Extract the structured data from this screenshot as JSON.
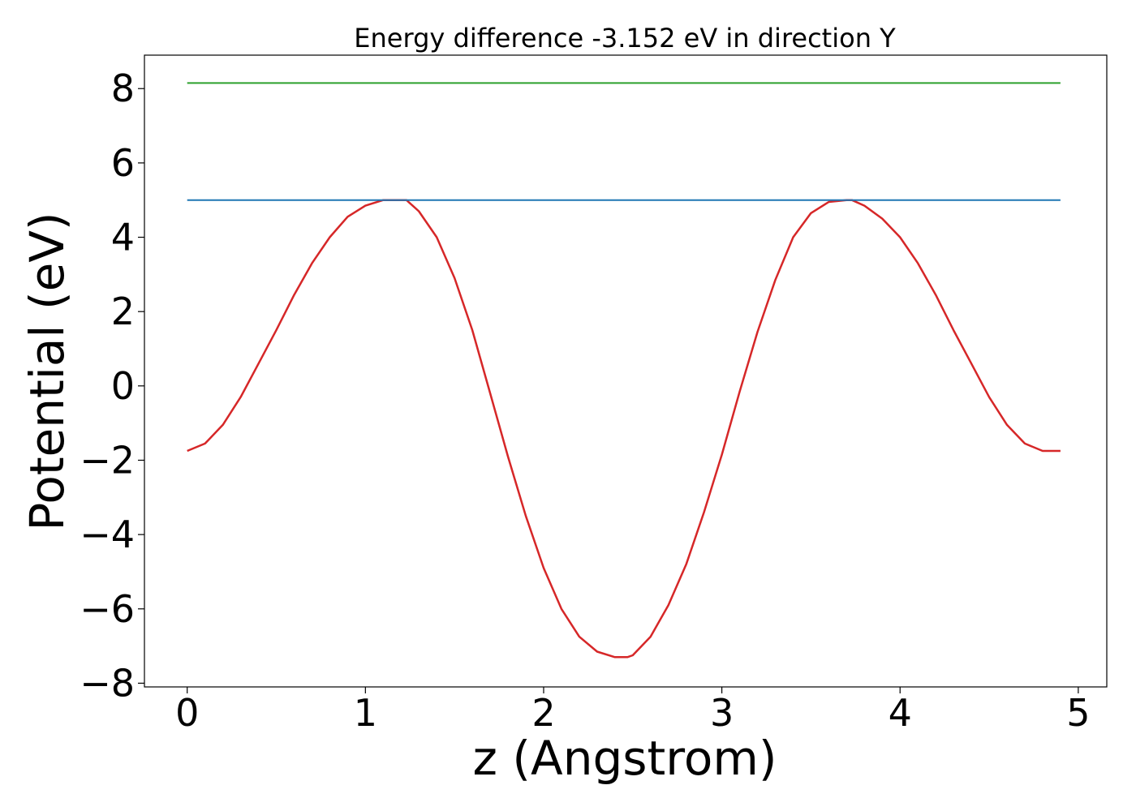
{
  "chart_data": {
    "type": "line",
    "title": "Energy difference -3.152 eV in direction Y",
    "xlabel": "z (Angstrom)",
    "ylabel": "Potential (eV)",
    "xlim": [
      -0.24,
      5.16
    ],
    "ylim": [
      -8.1,
      8.9
    ],
    "x_ticks": [
      0,
      1,
      2,
      3,
      4,
      5
    ],
    "y_ticks": [
      -8,
      -6,
      -4,
      -2,
      0,
      2,
      4,
      6,
      8
    ],
    "x_tick_labels": [
      "0",
      "1",
      "2",
      "3",
      "4",
      "5"
    ],
    "y_tick_labels": [
      "−8",
      "−6",
      "−4",
      "−2",
      "0",
      "2",
      "4",
      "6",
      "8"
    ],
    "grid": false,
    "series": [
      {
        "color": "#d62728",
        "x": [
          0,
          0.1,
          0.2,
          0.3,
          0.4,
          0.5,
          0.6,
          0.7,
          0.8,
          0.9,
          1.0,
          1.1,
          1.2,
          1.23,
          1.3,
          1.4,
          1.5,
          1.6,
          1.7,
          1.8,
          1.9,
          2.0,
          2.1,
          2.2,
          2.3,
          2.4,
          2.47,
          2.5,
          2.6,
          2.7,
          2.8,
          2.9,
          3.0,
          3.1,
          3.2,
          3.3,
          3.4,
          3.5,
          3.6,
          3.7,
          3.73,
          3.8,
          3.9,
          4.0,
          4.1,
          4.2,
          4.3,
          4.4,
          4.5,
          4.6,
          4.7,
          4.8,
          4.9
        ],
        "y": [
          -1.75,
          -1.55,
          -1.05,
          -0.3,
          0.6,
          1.5,
          2.45,
          3.3,
          4.0,
          4.55,
          4.85,
          5.0,
          5.0,
          5.0,
          4.7,
          4.0,
          2.9,
          1.5,
          -0.2,
          -1.9,
          -3.5,
          -4.9,
          -6.0,
          -6.75,
          -7.15,
          -7.3,
          -7.3,
          -7.25,
          -6.75,
          -5.9,
          -4.8,
          -3.4,
          -1.85,
          -0.15,
          1.45,
          2.85,
          4.0,
          4.65,
          4.95,
          5.0,
          5.0,
          4.85,
          4.5,
          4.0,
          3.3,
          2.45,
          1.5,
          0.6,
          -0.3,
          -1.05,
          -1.55,
          -1.75,
          -1.75
        ]
      },
      {
        "color": "#1f77b4",
        "x": [
          0,
          4.9
        ],
        "y": [
          5.0,
          5.0
        ]
      },
      {
        "color": "#2ca02c",
        "x": [
          0,
          4.9
        ],
        "y": [
          8.15,
          8.15
        ]
      }
    ]
  }
}
